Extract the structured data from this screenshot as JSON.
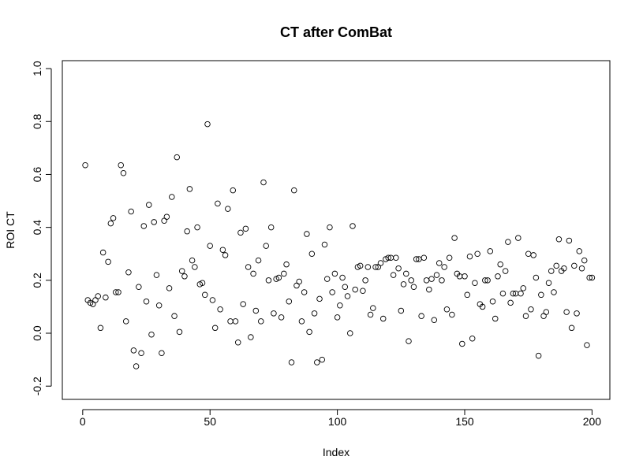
{
  "chart_data": {
    "type": "scatter",
    "title": "CT after ComBat",
    "xlabel": "Index",
    "ylabel": "ROI CT",
    "xlim": [
      -8,
      207
    ],
    "ylim": [
      -0.25,
      1.03
    ],
    "xticks": [
      0,
      50,
      100,
      150,
      200
    ],
    "yticks": [
      -0.2,
      0.0,
      0.2,
      0.4,
      0.6,
      0.8,
      1.0
    ],
    "xtick_labels": [
      "0",
      "50",
      "100",
      "150",
      "200"
    ],
    "ytick_labels": [
      "-0.2",
      "0.0",
      "0.2",
      "0.4",
      "0.6",
      "0.8",
      "1.0"
    ],
    "grid": false,
    "marker": "open-circle",
    "x": [
      1,
      2,
      3,
      4,
      5,
      6,
      7,
      8,
      9,
      10,
      11,
      12,
      13,
      14,
      15,
      16,
      17,
      18,
      19,
      20,
      21,
      22,
      23,
      24,
      25,
      26,
      27,
      28,
      29,
      30,
      31,
      32,
      33,
      34,
      35,
      36,
      37,
      38,
      39,
      40,
      41,
      42,
      43,
      44,
      45,
      46,
      47,
      48,
      49,
      50,
      51,
      52,
      53,
      54,
      55,
      56,
      57,
      58,
      59,
      60,
      61,
      62,
      63,
      64,
      65,
      66,
      67,
      68,
      69,
      70,
      71,
      72,
      73,
      74,
      75,
      76,
      77,
      78,
      79,
      80,
      81,
      82,
      83,
      84,
      85,
      86,
      87,
      88,
      89,
      90,
      91,
      92,
      93,
      94,
      95,
      96,
      97,
      98,
      99,
      100,
      101,
      102,
      103,
      104,
      105,
      106,
      107,
      108,
      109,
      110,
      111,
      112,
      113,
      114,
      115,
      116,
      117,
      118,
      119,
      120,
      121,
      122,
      123,
      124,
      125,
      126,
      127,
      128,
      129,
      130,
      131,
      132,
      133,
      134,
      135,
      136,
      137,
      138,
      139,
      140,
      141,
      142,
      143,
      144,
      145,
      146,
      147,
      148,
      149,
      150,
      151,
      152,
      153,
      154,
      155,
      156,
      157,
      158,
      159,
      160,
      161,
      162,
      163,
      164,
      165,
      166,
      167,
      168,
      169,
      170,
      171,
      172,
      173,
      174,
      175,
      176,
      177,
      178,
      179,
      180,
      181,
      182,
      183,
      184,
      185,
      186,
      187,
      188,
      189,
      190,
      191,
      192,
      193,
      194,
      195,
      196,
      197,
      198,
      199,
      200
    ],
    "y": [
      0.635,
      0.125,
      0.115,
      0.11,
      0.125,
      0.14,
      0.02,
      0.305,
      0.135,
      0.27,
      0.415,
      0.435,
      0.155,
      0.155,
      0.635,
      0.605,
      0.045,
      0.23,
      0.46,
      -0.065,
      -0.125,
      0.175,
      -0.075,
      0.405,
      0.12,
      0.485,
      -0.005,
      0.42,
      0.22,
      0.105,
      -0.075,
      0.425,
      0.44,
      0.17,
      0.515,
      0.065,
      0.665,
      0.005,
      0.235,
      0.215,
      0.385,
      0.545,
      0.275,
      0.25,
      0.4,
      0.185,
      0.19,
      0.145,
      0.79,
      0.33,
      0.125,
      0.02,
      0.49,
      0.09,
      0.315,
      0.295,
      0.47,
      0.045,
      0.54,
      0.045,
      -0.035,
      0.38,
      0.11,
      0.395,
      0.25,
      -0.015,
      0.225,
      0.085,
      0.275,
      0.045,
      0.57,
      0.33,
      0.2,
      0.4,
      0.075,
      0.205,
      0.21,
      0.06,
      0.225,
      0.26,
      0.12,
      -0.11,
      0.54,
      0.18,
      0.195,
      0.045,
      0.155,
      0.375,
      0.005,
      0.3,
      0.075,
      -0.11,
      0.13,
      -0.1,
      0.335,
      0.205,
      0.4,
      0.155,
      0.225,
      0.06,
      0.105,
      0.21,
      0.175,
      0.14,
      0.0,
      0.405,
      0.165,
      0.25,
      0.255,
      0.16,
      0.2,
      0.25,
      0.07,
      0.095,
      0.25,
      0.25,
      0.265,
      0.055,
      0.28,
      0.285,
      0.285,
      0.22,
      0.285,
      0.245,
      0.085,
      0.185,
      0.225,
      -0.03,
      0.2,
      0.175,
      0.28,
      0.28,
      0.065,
      0.285,
      0.2,
      0.165,
      0.205,
      0.05,
      0.22,
      0.265,
      0.2,
      0.25,
      0.09,
      0.285,
      0.07,
      0.36,
      0.225,
      0.215,
      -0.04,
      0.215,
      0.145,
      0.29,
      -0.02,
      0.19,
      0.3,
      0.11,
      0.1,
      0.2,
      0.2,
      0.31,
      0.12,
      0.055,
      0.215,
      0.26,
      0.15,
      0.235,
      0.345,
      0.115,
      0.15,
      0.15,
      0.36,
      0.15,
      0.17,
      0.065,
      0.3,
      0.09,
      0.295,
      0.21,
      -0.085,
      0.145,
      0.065,
      0.08,
      0.19,
      0.235,
      0.155,
      0.255,
      0.355,
      0.235,
      0.245,
      0.08,
      0.35,
      0.02,
      0.255,
      0.075,
      0.31,
      0.245,
      0.275,
      -0.045,
      0.21,
      0.21
    ]
  }
}
